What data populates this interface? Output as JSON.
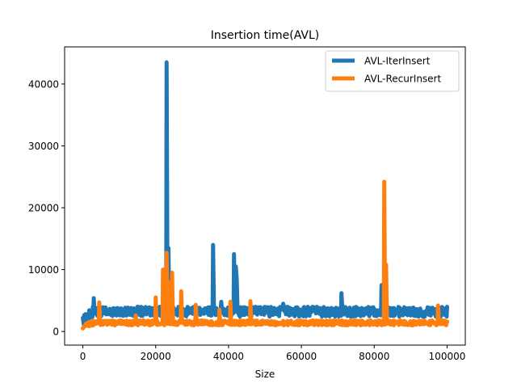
{
  "chart_data": {
    "type": "line",
    "title": "Insertion time(AVL)",
    "xlabel": "Size",
    "ylabel": "",
    "xlim": [
      -5000,
      105000
    ],
    "ylim": [
      -2200,
      46000
    ],
    "xticks": [
      0,
      20000,
      40000,
      60000,
      80000,
      100000
    ],
    "yticks": [
      0,
      10000,
      20000,
      30000,
      40000
    ],
    "grid": false,
    "legend": "top-right",
    "series": [
      {
        "name": "AVL-IterInsert",
        "color": "#1f77b4",
        "baseline": 3200,
        "noise": 800,
        "spikes": [
          {
            "x": 0,
            "y": 2200
          },
          {
            "x": 3000,
            "y": 5400
          },
          {
            "x": 20000,
            "y": 4400
          },
          {
            "x": 23000,
            "y": 43500
          },
          {
            "x": 23400,
            "y": 13500
          },
          {
            "x": 24400,
            "y": 5600
          },
          {
            "x": 35800,
            "y": 14000
          },
          {
            "x": 38000,
            "y": 4800
          },
          {
            "x": 41600,
            "y": 12500
          },
          {
            "x": 42000,
            "y": 10500
          },
          {
            "x": 42300,
            "y": 8500
          },
          {
            "x": 55000,
            "y": 4500
          },
          {
            "x": 71000,
            "y": 6200
          },
          {
            "x": 82000,
            "y": 7500
          },
          {
            "x": 82800,
            "y": 10500
          },
          {
            "x": 100000,
            "y": 4000
          }
        ]
      },
      {
        "name": "AVL-RecurInsert",
        "color": "#ff7f0e",
        "baseline": 1400,
        "noise": 400,
        "spikes": [
          {
            "x": 0,
            "y": 500
          },
          {
            "x": 4500,
            "y": 4700
          },
          {
            "x": 14500,
            "y": 2600
          },
          {
            "x": 20000,
            "y": 5500
          },
          {
            "x": 22000,
            "y": 10000
          },
          {
            "x": 23000,
            "y": 12700
          },
          {
            "x": 23500,
            "y": 8000
          },
          {
            "x": 24500,
            "y": 9500
          },
          {
            "x": 27000,
            "y": 6500
          },
          {
            "x": 31000,
            "y": 4300
          },
          {
            "x": 37500,
            "y": 3500
          },
          {
            "x": 40500,
            "y": 4800
          },
          {
            "x": 46000,
            "y": 4900
          },
          {
            "x": 82800,
            "y": 24200
          },
          {
            "x": 83200,
            "y": 10800
          },
          {
            "x": 97500,
            "y": 4200
          },
          {
            "x": 100000,
            "y": 1600
          }
        ]
      }
    ]
  }
}
